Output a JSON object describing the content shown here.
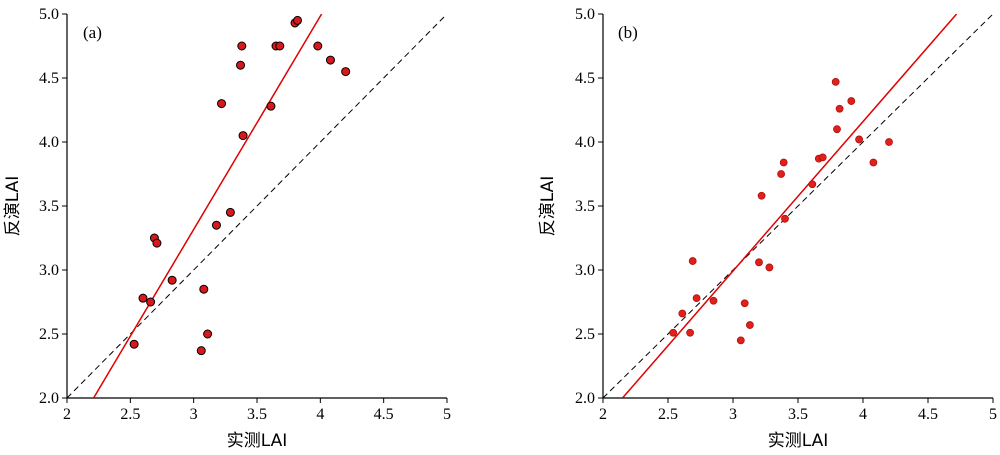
{
  "chart_data": [
    {
      "type": "scatter",
      "panel_label": "(a)",
      "xlabel": "实测LAI",
      "ylabel": "反演LAI",
      "xlim": [
        2,
        5
      ],
      "ylim": [
        2.0,
        5.0
      ],
      "xticks": [
        "2",
        "2.5",
        "3",
        "3.5",
        "4",
        "4.5",
        "5"
      ],
      "yticks": [
        "2.0",
        "2.5",
        "3.0",
        "3.5",
        "4.0",
        "4.5",
        "5.0"
      ],
      "points": [
        {
          "x": 2.53,
          "y": 2.42
        },
        {
          "x": 2.6,
          "y": 2.78
        },
        {
          "x": 2.66,
          "y": 2.75
        },
        {
          "x": 2.69,
          "y": 3.25
        },
        {
          "x": 2.71,
          "y": 3.21
        },
        {
          "x": 2.83,
          "y": 2.92
        },
        {
          "x": 3.06,
          "y": 2.37
        },
        {
          "x": 3.08,
          "y": 2.85
        },
        {
          "x": 3.11,
          "y": 2.5
        },
        {
          "x": 3.18,
          "y": 3.35
        },
        {
          "x": 3.22,
          "y": 4.3
        },
        {
          "x": 3.29,
          "y": 3.45
        },
        {
          "x": 3.37,
          "y": 4.6
        },
        {
          "x": 3.38,
          "y": 4.75
        },
        {
          "x": 3.39,
          "y": 4.05
        },
        {
          "x": 3.61,
          "y": 4.28
        },
        {
          "x": 3.65,
          "y": 4.75
        },
        {
          "x": 3.68,
          "y": 4.75
        },
        {
          "x": 3.8,
          "y": 4.93
        },
        {
          "x": 3.82,
          "y": 4.95
        },
        {
          "x": 3.98,
          "y": 4.75
        },
        {
          "x": 4.08,
          "y": 4.64
        },
        {
          "x": 4.2,
          "y": 4.55
        }
      ],
      "fit_line": {
        "x": [
          2.21,
          4.01
        ],
        "y": [
          2.0,
          5.0
        ]
      },
      "reference_line": {
        "x": [
          2,
          5
        ],
        "y": [
          2,
          5
        ]
      },
      "colors": {
        "points": "#d7191c",
        "fit": "#e00000",
        "reference": "#000000"
      }
    },
    {
      "type": "scatter",
      "panel_label": "(b)",
      "xlabel": "实测LAI",
      "ylabel": "反演LAI",
      "xlim": [
        2,
        5
      ],
      "ylim": [
        2.0,
        5.0
      ],
      "xticks": [
        "2",
        "2.5",
        "3",
        "3.5",
        "4",
        "4.5",
        "5"
      ],
      "yticks": [
        "2.0",
        "2.5",
        "3.0",
        "3.5",
        "4.0",
        "4.5",
        "5.0"
      ],
      "points": [
        {
          "x": 2.54,
          "y": 2.51
        },
        {
          "x": 2.61,
          "y": 2.66
        },
        {
          "x": 2.67,
          "y": 2.51
        },
        {
          "x": 2.69,
          "y": 3.07
        },
        {
          "x": 2.72,
          "y": 2.78
        },
        {
          "x": 2.85,
          "y": 2.76
        },
        {
          "x": 3.06,
          "y": 2.45
        },
        {
          "x": 3.09,
          "y": 2.74
        },
        {
          "x": 3.13,
          "y": 2.57
        },
        {
          "x": 3.2,
          "y": 3.06
        },
        {
          "x": 3.22,
          "y": 3.58
        },
        {
          "x": 3.28,
          "y": 3.02
        },
        {
          "x": 3.37,
          "y": 3.75
        },
        {
          "x": 3.39,
          "y": 3.84
        },
        {
          "x": 3.4,
          "y": 3.4
        },
        {
          "x": 3.61,
          "y": 3.67
        },
        {
          "x": 3.66,
          "y": 3.87
        },
        {
          "x": 3.69,
          "y": 3.88
        },
        {
          "x": 3.79,
          "y": 4.47
        },
        {
          "x": 3.8,
          "y": 4.1
        },
        {
          "x": 3.82,
          "y": 4.26
        },
        {
          "x": 3.91,
          "y": 4.32
        },
        {
          "x": 3.97,
          "y": 4.02
        },
        {
          "x": 4.08,
          "y": 3.84
        },
        {
          "x": 4.2,
          "y": 4.0
        }
      ],
      "fit_line": {
        "x": [
          2.15,
          4.72
        ],
        "y": [
          2.0,
          5.0
        ]
      },
      "reference_line": {
        "x": [
          2,
          5
        ],
        "y": [
          2,
          5
        ]
      },
      "colors": {
        "points": "#e0201a",
        "fit": "#e00000",
        "reference": "#000000"
      }
    }
  ]
}
